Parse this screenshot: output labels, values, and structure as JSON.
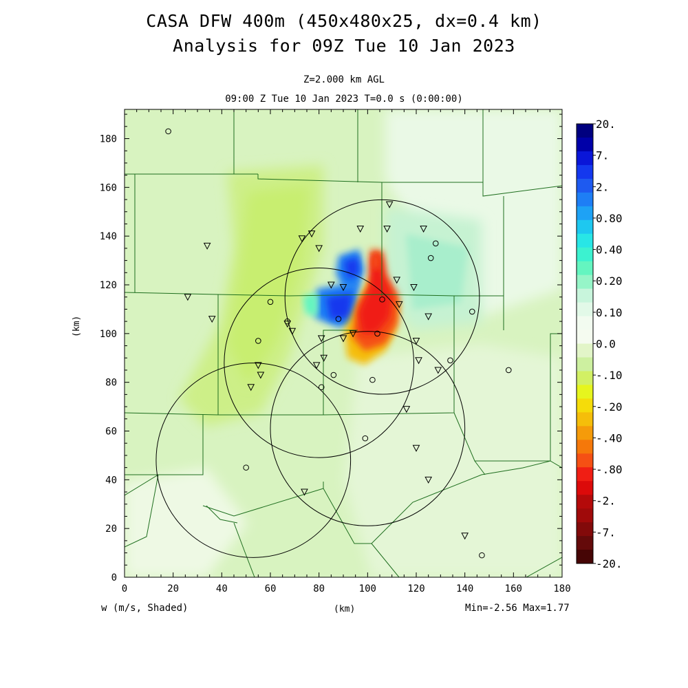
{
  "title": {
    "line1": "CASA DFW 400m (450x480x25, dx=0.4 km)",
    "line2": "Analysis for 09Z Tue 10 Jan 2023"
  },
  "subtitle": {
    "level": "Z=2.000 km AGL",
    "time": "09:00 Z Tue 10 Jan 2023   T=0.0 s (0:00:00)"
  },
  "axes": {
    "x_label": "(km)",
    "y_label": "(km)",
    "x_range": [
      0,
      180
    ],
    "y_range": [
      0,
      192
    ],
    "x_ticks": [
      "0",
      "20",
      "40",
      "60",
      "80",
      "100",
      "120",
      "140",
      "160",
      "180"
    ],
    "y_ticks": [
      "0",
      "20",
      "40",
      "60",
      "80",
      "100",
      "120",
      "140",
      "160",
      "180"
    ]
  },
  "variable_label": "w (m/s, Shaded)",
  "stats": "Min=-2.56 Max=1.77",
  "colorbar": {
    "labels": [
      "20.",
      "7.",
      "2.",
      "0.80",
      "0.40",
      "0.20",
      "0.10",
      "0.0",
      "-.10",
      "-.20",
      "-.40",
      "-.80",
      "-2.",
      "-7.",
      "-20."
    ],
    "colors": [
      "#00007f",
      "#0000a8",
      "#0a16d8",
      "#1438ee",
      "#1e5af0",
      "#1e7ef5",
      "#1ea2f5",
      "#1ec8f0",
      "#28e6e6",
      "#3cf2d0",
      "#64f5c0",
      "#96f5c8",
      "#c8f5dc",
      "#e2f9e8",
      "#f2fbf0",
      "#f5fbf0",
      "#e2f5c8",
      "#cdf0a0",
      "#d2f064",
      "#e6f51e",
      "#f5dc0a",
      "#f5be0a",
      "#f59b0a",
      "#f5780a",
      "#f55014",
      "#f01e14",
      "#dc0a0a",
      "#b40a0a",
      "#a00a0a",
      "#820a0a",
      "#640a0a",
      "#460505"
    ]
  },
  "chart_data": {
    "type": "heatmap",
    "variable": "w (m/s, Shaded)",
    "min": -2.56,
    "max": 1.77,
    "radar_rings": [
      {
        "center": [
          106,
          115
        ],
        "radius": 40
      },
      {
        "center": [
          80,
          88
        ],
        "radius": 39
      },
      {
        "center": [
          100,
          61
        ],
        "radius": 40
      },
      {
        "center": [
          53,
          48
        ],
        "radius": 40
      }
    ],
    "triangle_stations": [
      [
        34,
        136
      ],
      [
        26,
        115
      ],
      [
        36,
        106
      ],
      [
        77,
        141
      ],
      [
        80,
        135
      ],
      [
        73,
        139
      ],
      [
        55,
        87
      ],
      [
        56,
        83
      ],
      [
        52,
        78
      ],
      [
        67,
        104
      ],
      [
        69,
        101
      ],
      [
        79,
        87
      ],
      [
        82,
        90
      ],
      [
        81,
        98
      ],
      [
        85,
        120
      ],
      [
        90,
        119
      ],
      [
        90,
        98
      ],
      [
        94,
        100
      ],
      [
        97,
        143
      ],
      [
        109,
        153
      ],
      [
        108,
        143
      ],
      [
        112,
        122
      ],
      [
        113,
        112
      ],
      [
        119,
        119
      ],
      [
        123,
        143
      ],
      [
        125,
        107
      ],
      [
        120,
        97
      ],
      [
        121,
        89
      ],
      [
        129,
        85
      ],
      [
        120,
        53
      ],
      [
        116,
        69
      ],
      [
        125,
        40
      ],
      [
        140,
        17
      ],
      [
        74,
        35
      ]
    ],
    "circle_stations": [
      [
        18,
        183
      ],
      [
        60,
        113
      ],
      [
        55,
        97
      ],
      [
        67,
        105
      ],
      [
        88,
        106
      ],
      [
        86,
        83
      ],
      [
        81,
        78
      ],
      [
        104,
        100
      ],
      [
        102,
        81
      ],
      [
        106,
        114
      ],
      [
        128,
        137
      ],
      [
        126,
        131
      ],
      [
        134,
        89
      ],
      [
        143,
        109
      ],
      [
        158,
        85
      ],
      [
        99,
        57
      ],
      [
        50,
        45
      ],
      [
        147,
        9
      ]
    ]
  }
}
